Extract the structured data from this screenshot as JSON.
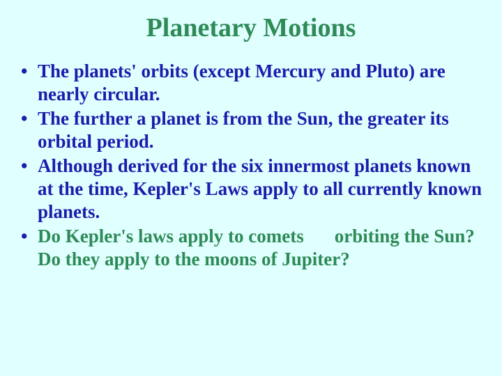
{
  "slide": {
    "background_color": "#e0ffff",
    "title": {
      "text": "Planetary Motions",
      "color": "#2e8b57",
      "fontsize": 38,
      "font_weight": "bold",
      "font_family": "Times New Roman"
    },
    "bullets": {
      "color": "#1c1cac",
      "green_color": "#2e8b57",
      "fontsize": 27,
      "font_weight": "bold",
      "marker": "•",
      "items": [
        {
          "text": "The planets' orbits (except Mercury and Pluto) are nearly circular."
        },
        {
          "text": "The further a planet is from the Sun, the greater its orbital period."
        },
        {
          "text": "Although derived for the six innermost planets known at the time, Kepler's Laws apply to all currently known planets."
        },
        {
          "green_part": "Do Kepler's laws apply to comets",
          "green_trail": "orbiting the Sun?",
          "sub": "Do they apply to the moons of Jupiter?"
        }
      ]
    }
  }
}
